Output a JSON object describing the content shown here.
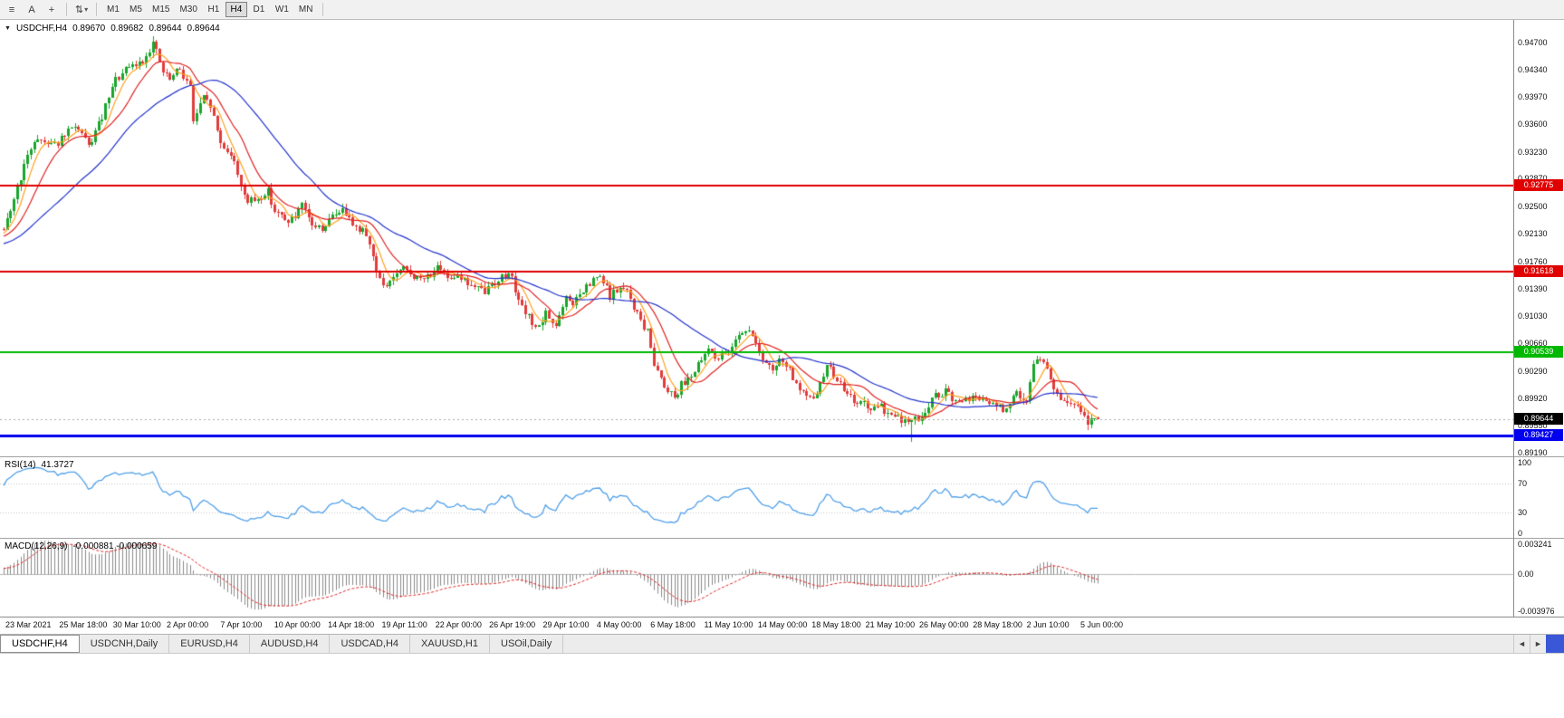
{
  "toolbar": {
    "icons": [
      {
        "name": "charts-list",
        "glyph": "≡"
      },
      {
        "name": "text-tool",
        "glyph": "A"
      },
      {
        "name": "crosshair-tool",
        "glyph": "+"
      },
      {
        "name": "cycle-tool",
        "glyph": "⇅",
        "caret": "▾"
      }
    ],
    "timeframes": [
      "M1",
      "M5",
      "M15",
      "M30",
      "H1",
      "H4",
      "D1",
      "W1",
      "MN"
    ],
    "active_timeframe": "H4"
  },
  "chart": {
    "header": {
      "collapse_arrow": "▼",
      "symbol": "USDCHF,H4",
      "open": "0.89670",
      "high": "0.89682",
      "low": "0.89644",
      "close": "0.89644"
    },
    "price_scale": {
      "top_value": 0.947,
      "bottom_value": 0.8919,
      "labels": [
        "0.94700",
        "0.94340",
        "0.93970",
        "0.93600",
        "0.93230",
        "0.92870",
        "0.92500",
        "0.92130",
        "0.91760",
        "0.91390",
        "0.91030",
        "0.90660",
        "0.90290",
        "0.89920",
        "0.89550",
        "0.89190"
      ]
    },
    "hlines": [
      {
        "price": 0.92775,
        "label": "0.92775",
        "color": "#e00000",
        "thickness": 2
      },
      {
        "price": 0.91618,
        "label": "0.91618",
        "color": "#e00000",
        "thickness": 2
      },
      {
        "price": 0.90539,
        "label": "0.90539",
        "color": "#00b800",
        "thickness": 2
      },
      {
        "price": 0.89427,
        "label": "0.89427",
        "color": "#0000ee",
        "thickness": 3
      }
    ],
    "bid_line": {
      "price": 0.89644,
      "label": "0.89644",
      "line_color": "#a8a8a8",
      "badge_color": "#000000"
    },
    "colors": {
      "background": "#ffffff",
      "bull": "#19a52c",
      "bear": "#e13b3b"
    }
  },
  "rsi_panel": {
    "name": "RSI(14)",
    "value": "41.3727",
    "axis_labels": [
      "100",
      "70",
      "30",
      "0"
    ],
    "levels": [
      70,
      30
    ],
    "max": 100,
    "min": 0,
    "line_color": "#4f9fe8"
  },
  "macd_panel": {
    "name": "MACD(12,26,9)",
    "values": "-0.000881 -0.000659",
    "axis_labels": [
      "0.003241",
      "0.00",
      "-0.003976"
    ],
    "max": 0.003241,
    "min": -0.003976,
    "histogram_color": "#8a8a8a",
    "signal_color": "#e02222"
  },
  "time_axis": {
    "labels": [
      "23 Mar 2021",
      "25 Mar 18:00",
      "30 Mar 10:00",
      "2 Apr 00:00",
      "7 Apr 10:00",
      "10 Apr 00:00",
      "14 Apr 18:00",
      "19 Apr 11:00",
      "22 Apr 00:00",
      "26 Apr 19:00",
      "29 Apr 10:00",
      "4 May 00:00",
      "6 May 18:00",
      "11 May 10:00",
      "14 May 00:00",
      "18 May 18:00",
      "21 May 10:00",
      "26 May 00:00",
      "28 May 18:00",
      "2 Jun 10:00",
      "5 Jun 00:00"
    ]
  },
  "tab_bar": {
    "tabs": [
      "USDCHF,H4",
      "USDCNH,Daily",
      "EURUSD,H4",
      "AUDUSD,H4",
      "USDCAD,H4",
      "XAUUSD,H1",
      "USOil,Daily"
    ],
    "active_tab": "USDCHF,H4",
    "scroll_left": "◄",
    "scroll_right": "►"
  },
  "chart_data": {
    "type": "candlestick",
    "symbol": "USDCHF",
    "timeframe": "H4",
    "title": "USDCHF,H4",
    "ylim": [
      0.8919,
      0.947
    ],
    "bars": 324,
    "last_ohlc": {
      "open": 0.8967,
      "high": 0.89682,
      "low": 0.89644,
      "close": 0.89644
    },
    "price_waypoints": [
      [
        0,
        0.9215
      ],
      [
        1,
        0.923
      ],
      [
        5,
        0.929
      ],
      [
        9,
        0.934
      ],
      [
        16,
        0.9335
      ],
      [
        21,
        0.936
      ],
      [
        25,
        0.933
      ],
      [
        29,
        0.937
      ],
      [
        33,
        0.942
      ],
      [
        37,
        0.9435
      ],
      [
        41,
        0.9445
      ],
      [
        44,
        0.947
      ],
      [
        47,
        0.943
      ],
      [
        49,
        0.942
      ],
      [
        52,
        0.9435
      ],
      [
        55,
        0.941
      ],
      [
        56,
        0.9365
      ],
      [
        59,
        0.9395
      ],
      [
        61,
        0.9385
      ],
      [
        64,
        0.9335
      ],
      [
        67,
        0.932
      ],
      [
        70,
        0.928
      ],
      [
        72,
        0.9255
      ],
      [
        75,
        0.926
      ],
      [
        78,
        0.927
      ],
      [
        80,
        0.9245
      ],
      [
        83,
        0.923
      ],
      [
        86,
        0.9235
      ],
      [
        88,
        0.925
      ],
      [
        91,
        0.9225
      ],
      [
        94,
        0.922
      ],
      [
        96,
        0.923
      ],
      [
        99,
        0.9245
      ],
      [
        102,
        0.924
      ],
      [
        104,
        0.922
      ],
      [
        107,
        0.9215
      ],
      [
        110,
        0.9165
      ],
      [
        112,
        0.914
      ],
      [
        115,
        0.9155
      ],
      [
        118,
        0.9165
      ],
      [
        120,
        0.916
      ],
      [
        123,
        0.915
      ],
      [
        126,
        0.916
      ],
      [
        128,
        0.9165
      ],
      [
        131,
        0.9155
      ],
      [
        134,
        0.916
      ],
      [
        136,
        0.915
      ],
      [
        139,
        0.914
      ],
      [
        142,
        0.9135
      ],
      [
        144,
        0.9145
      ],
      [
        147,
        0.9155
      ],
      [
        150,
        0.916
      ],
      [
        152,
        0.912
      ],
      [
        155,
        0.91
      ],
      [
        158,
        0.9085
      ],
      [
        160,
        0.9105
      ],
      [
        163,
        0.909
      ],
      [
        166,
        0.9125
      ],
      [
        168,
        0.912
      ],
      [
        171,
        0.9135
      ],
      [
        174,
        0.915
      ],
      [
        176,
        0.9155
      ],
      [
        179,
        0.913
      ],
      [
        182,
        0.914
      ],
      [
        184,
        0.9135
      ],
      [
        187,
        0.9105
      ],
      [
        190,
        0.908
      ],
      [
        192,
        0.904
      ],
      [
        195,
        0.901
      ],
      [
        198,
        0.8995
      ],
      [
        200,
        0.901
      ],
      [
        203,
        0.9025
      ],
      [
        206,
        0.904
      ],
      [
        208,
        0.906
      ],
      [
        211,
        0.9045
      ],
      [
        214,
        0.9055
      ],
      [
        216,
        0.9075
      ],
      [
        219,
        0.9085
      ],
      [
        222,
        0.907
      ],
      [
        224,
        0.904
      ],
      [
        227,
        0.903
      ],
      [
        230,
        0.9045
      ],
      [
        232,
        0.903
      ],
      [
        235,
        0.9
      ],
      [
        238,
        0.899
      ],
      [
        240,
        0.9
      ],
      [
        243,
        0.9035
      ],
      [
        246,
        0.902
      ],
      [
        248,
        0.9
      ],
      [
        251,
        0.899
      ],
      [
        254,
        0.8985
      ],
      [
        256,
        0.8975
      ],
      [
        259,
        0.898
      ],
      [
        262,
        0.897
      ],
      [
        264,
        0.8965
      ],
      [
        267,
        0.896
      ],
      [
        270,
        0.8965
      ],
      [
        272,
        0.8975
      ],
      [
        275,
        0.8995
      ],
      [
        278,
        0.9
      ],
      [
        280,
        0.899
      ],
      [
        283,
        0.8985
      ],
      [
        286,
        0.8995
      ],
      [
        288,
        0.899
      ],
      [
        291,
        0.8985
      ],
      [
        294,
        0.898
      ],
      [
        296,
        0.8975
      ],
      [
        299,
        0.9
      ],
      [
        302,
        0.899
      ],
      [
        304,
        0.904
      ],
      [
        307,
        0.9045
      ],
      [
        308,
        0.9035
      ],
      [
        310,
        0.9
      ],
      [
        312,
        0.899
      ],
      [
        315,
        0.8985
      ],
      [
        318,
        0.8975
      ],
      [
        320,
        0.896
      ],
      [
        323,
        0.89644
      ]
    ],
    "forced_extremes": [
      {
        "bar": 44,
        "kind": "high",
        "price": 0.9472
      },
      {
        "bar": 268,
        "kind": "low",
        "price": 0.8934
      }
    ],
    "noise": {
      "seed": 9,
      "close_jitter": 0.0011,
      "wick_jitter": 0.0007
    },
    "pre_chart": {
      "bars": 40,
      "start_offset": -0.004
    },
    "moving_averages": [
      {
        "period": 6,
        "color": "#ffa01e"
      },
      {
        "period": 13,
        "color": "#e02222"
      },
      {
        "period": 34,
        "color": "#2333cc"
      }
    ],
    "indicators": {
      "rsi_period": 14,
      "macd_fast": 12,
      "macd_slow": 26,
      "macd_signal": 9
    }
  }
}
